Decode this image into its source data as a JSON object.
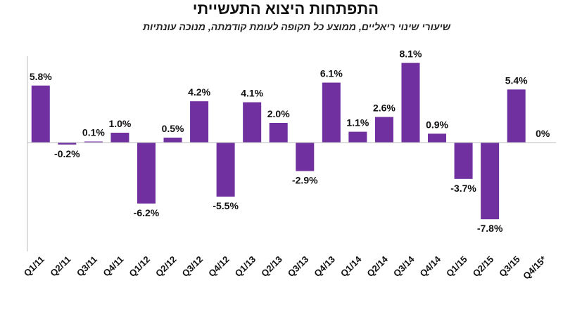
{
  "chart_data": {
    "type": "bar",
    "title": "התפתחות היצוא התעשייתי",
    "subtitle": "שיעורי שינוי ריאליים, ממוצע כל תקופה לעומת קודמתה, מנוכה עונתיות",
    "categories": [
      "Q1/11",
      "Q2/11",
      "Q3/11",
      "Q4/11",
      "Q1/12",
      "Q2/12",
      "Q3/12",
      "Q4/12",
      "Q1/13",
      "Q2/13",
      "Q3/13",
      "Q4/13",
      "Q1/14",
      "Q2/14",
      "Q3/14",
      "Q4/14",
      "Q1/15",
      "Q2/15",
      "Q3/15",
      "Q4/15*"
    ],
    "values": [
      5.8,
      -0.2,
      0.1,
      1.0,
      -6.2,
      0.5,
      4.2,
      -5.5,
      4.1,
      2.0,
      -2.9,
      6.1,
      1.1,
      2.6,
      8.1,
      0.9,
      -3.7,
      -7.8,
      5.4,
      0
    ],
    "labels": [
      "5.8%",
      "-0.2%",
      "0.1%",
      "1.0%",
      "-6.2%",
      "0.5%",
      "4.2%",
      "-5.5%",
      "4.1%",
      "2.0%",
      "-2.9%",
      "6.1%",
      "1.1%",
      "2.6%",
      "8.1%",
      "0.9%",
      "-3.7%",
      "-7.8%",
      "5.4%",
      "0%"
    ],
    "ylim": [
      -11,
      8.5
    ],
    "bar_color": "#7030a0",
    "axis_color": "#bbbbbb",
    "grid": false,
    "legend": "none"
  }
}
